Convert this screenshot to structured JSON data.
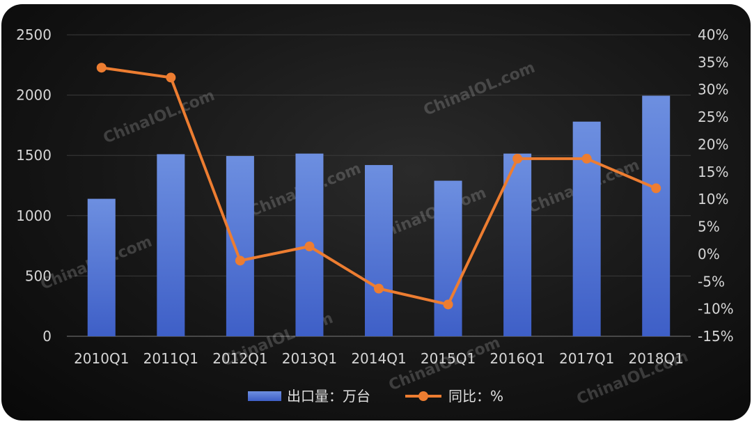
{
  "chart_data": {
    "type": "bar",
    "categories": [
      "2010Q1",
      "2011Q1",
      "2012Q1",
      "2013Q1",
      "2014Q1",
      "2015Q1",
      "2016Q1",
      "2017Q1",
      "2018Q1"
    ],
    "series": [
      {
        "name": "出口量：万台",
        "type": "bar",
        "axis": "left",
        "values": [
          1140,
          1510,
          1495,
          1515,
          1420,
          1290,
          1515,
          1780,
          1995
        ]
      },
      {
        "name": "同比：%",
        "type": "line",
        "axis": "right",
        "values": [
          34.0,
          32.2,
          -1.2,
          1.4,
          -6.3,
          -9.2,
          17.4,
          17.4,
          12.0
        ]
      }
    ],
    "left_axis": {
      "ylim": [
        0,
        2500
      ],
      "ticks": [
        "0",
        "500",
        "1000",
        "1500",
        "2000",
        "2500"
      ]
    },
    "right_axis": {
      "ylim": [
        -15,
        40
      ],
      "ticks": [
        "-15%",
        "-10%",
        "-5%",
        "0%",
        "5%",
        "10%",
        "15%",
        "20%",
        "25%",
        "30%",
        "35%",
        "40%"
      ]
    },
    "legend_position": "bottom-center",
    "grid": true,
    "watermark": "ChinaIOL.com",
    "colors": {
      "bar_top": "#6d8fe0",
      "bar_bottom": "#3e5fc7",
      "line": "#ed7d31",
      "grid": "#3a3a3a"
    }
  }
}
